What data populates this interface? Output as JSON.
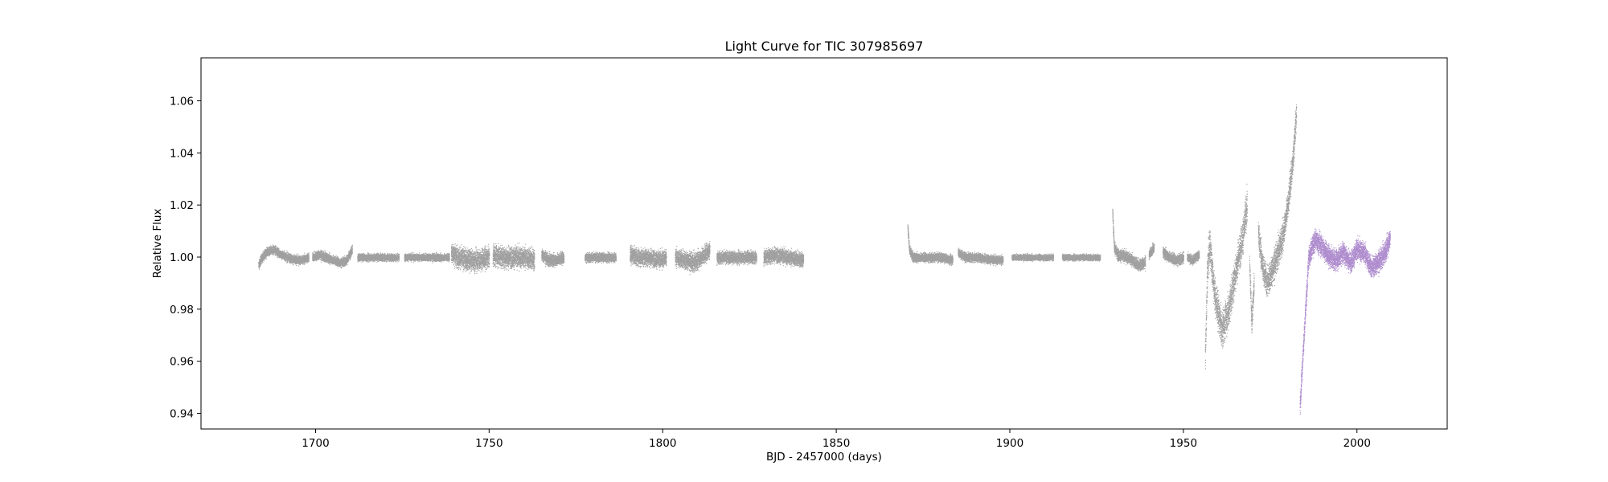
{
  "chart_data": {
    "type": "scatter",
    "title": "Light Curve for TIC 307985697",
    "xlabel": "BJD - 2457000 (days)",
    "ylabel": "Relative Flux",
    "xlim": [
      1667,
      2026
    ],
    "ylim": [
      0.934,
      1.0765
    ],
    "xticks": [
      1700,
      1750,
      1800,
      1850,
      1900,
      1950,
      2000
    ],
    "yticks": [
      0.94,
      0.96,
      0.98,
      1.0,
      1.02,
      1.04,
      1.06
    ],
    "ytick_labels": [
      "0.94",
      "0.96",
      "0.98",
      "1.00",
      "1.02",
      "1.04",
      "1.06"
    ],
    "grid": false,
    "colors": {
      "main": "#808080",
      "highlight": "#9467bd"
    },
    "series": [
      {
        "color": "#808080",
        "segments": [
          {
            "x": [
              1683.5,
              1684.5,
              1686,
              1688,
              1690,
              1692,
              1694,
              1696,
              1698
            ],
            "y": [
              0.997,
              1.0,
              1.002,
              1.003,
              1.001,
              1.0,
              0.999,
              0.999,
              1.0
            ],
            "spread": 0.0015
          },
          {
            "x": [
              1699,
              1701,
              1703,
              1705,
              1707,
              1709,
              1710.5
            ],
            "y": [
              1.0,
              1.001,
              1.0,
              0.999,
              0.998,
              0.999,
              1.003
            ],
            "spread": 0.0015
          },
          {
            "x": [
              1712,
              1715,
              1718,
              1721,
              1724
            ],
            "y": [
              1.0,
              1.0,
              1.0,
              1.0,
              1.0
            ],
            "spread": 0.0012
          },
          {
            "x": [
              1725.5,
              1729,
              1733,
              1737,
              1738.5
            ],
            "y": [
              1.0,
              1.0,
              1.0,
              1.0,
              1.0
            ],
            "spread": 0.0012
          },
          {
            "x": [
              1739,
              1741,
              1744,
              1747,
              1750
            ],
            "y": [
              1.002,
              1.0,
              0.999,
              0.999,
              1.0
            ],
            "spread": 0.0035
          },
          {
            "x": [
              1751,
              1754,
              1757,
              1760,
              1763
            ],
            "y": [
              1.001,
              1.0,
              1.0,
              1.0,
              0.999
            ],
            "spread": 0.0035
          },
          {
            "x": [
              1765,
              1767,
              1769,
              1771.5
            ],
            "y": [
              1.001,
              0.999,
              0.999,
              1.0
            ],
            "spread": 0.002
          },
          {
            "x": [
              1777.5,
              1780,
              1783,
              1786.5
            ],
            "y": [
              1.0,
              1.0,
              1.0,
              1.0
            ],
            "spread": 0.0015
          },
          {
            "x": [
              1790.5,
              1793,
              1796,
              1799,
              1801
            ],
            "y": [
              1.001,
              1.0,
              1.0,
              0.999,
              1.0
            ],
            "spread": 0.0028
          },
          {
            "x": [
              1803.5,
              1806,
              1809,
              1811,
              1813.5
            ],
            "y": [
              1.0,
              0.999,
              0.998,
              1.0,
              1.003
            ],
            "spread": 0.003
          },
          {
            "x": [
              1815.5,
              1819,
              1823,
              1827
            ],
            "y": [
              1.0,
              1.0,
              1.0,
              1.0
            ],
            "spread": 0.002
          },
          {
            "x": [
              1829,
              1832,
              1836,
              1840.5
            ],
            "y": [
              1.0,
              1.001,
              1.0,
              0.999
            ],
            "spread": 0.0025
          },
          {
            "x": [
              1870.5,
              1871,
              1872,
              1876,
              1880,
              1883.5
            ],
            "y": [
              1.012,
              1.003,
              1.0,
              1.0,
              1.0,
              0.999
            ],
            "spread": 0.0015
          },
          {
            "x": [
              1885,
              1887,
              1891,
              1895,
              1898
            ],
            "y": [
              1.002,
              1.0,
              1.0,
              0.999,
              0.999
            ],
            "spread": 0.0015
          },
          {
            "x": [
              1900.5,
              1904,
              1908,
              1912.5
            ],
            "y": [
              1.0,
              1.0,
              1.0,
              1.0
            ],
            "spread": 0.001
          },
          {
            "x": [
              1915,
              1920,
              1926
            ],
            "y": [
              1.0,
              1.0,
              1.0
            ],
            "spread": 0.001
          },
          {
            "x": [
              1929.5,
              1930,
              1931,
              1934,
              1937,
              1939
            ],
            "y": [
              1.018,
              1.004,
              1.001,
              1.0,
              0.997,
              0.998
            ],
            "spread": 0.002
          },
          {
            "x": [
              1940,
              1941.5
            ],
            "y": [
              1.001,
              1.004
            ],
            "spread": 0.0015
          },
          {
            "x": [
              1944,
              1946,
              1948,
              1950
            ],
            "y": [
              1.002,
              1.0,
              0.999,
              1.0
            ],
            "spread": 0.0018
          },
          {
            "x": [
              1951,
              1952.5,
              1954.5
            ],
            "y": [
              1.0,
              0.999,
              1.001
            ],
            "spread": 0.0015
          },
          {
            "x": [
              1956.2,
              1956.8,
              1957.5,
              1959,
              1961,
              1963,
              1965,
              1967,
              1968.3
            ],
            "y": [
              0.96,
              0.995,
              1.005,
              0.985,
              0.972,
              0.98,
              0.995,
              1.008,
              1.02
            ],
            "spread": 0.006
          },
          {
            "x": [
              1969,
              1969.6,
              1970.3
            ],
            "y": [
              0.997,
              0.975,
              0.99
            ],
            "spread": 0.004
          },
          {
            "x": [
              1971.5,
              1972.5,
              1974,
              1975.5,
              1977,
              1978.5,
              1980,
              1981.5,
              1982.5
            ],
            "y": [
              1.01,
              0.998,
              0.99,
              0.995,
              1.001,
              1.008,
              1.02,
              1.038,
              1.056
            ],
            "spread": 0.005
          }
        ]
      },
      {
        "color": "#9467bd",
        "segments": [
          {
            "x": [
              1983.5,
              1984,
              1985,
              1986,
              1987,
              1988,
              1990,
              1992,
              1994,
              1996,
              1998,
              2000,
              2002,
              2004,
              2006,
              2008,
              2009.5
            ],
            "y": [
              0.942,
              0.955,
              0.977,
              1.0,
              1.004,
              1.007,
              1.004,
              1.0,
              0.999,
              1.002,
              0.998,
              1.003,
              1.002,
              0.996,
              0.998,
              1.002,
              1.008
            ],
            "spread": 0.0035
          }
        ]
      }
    ]
  }
}
